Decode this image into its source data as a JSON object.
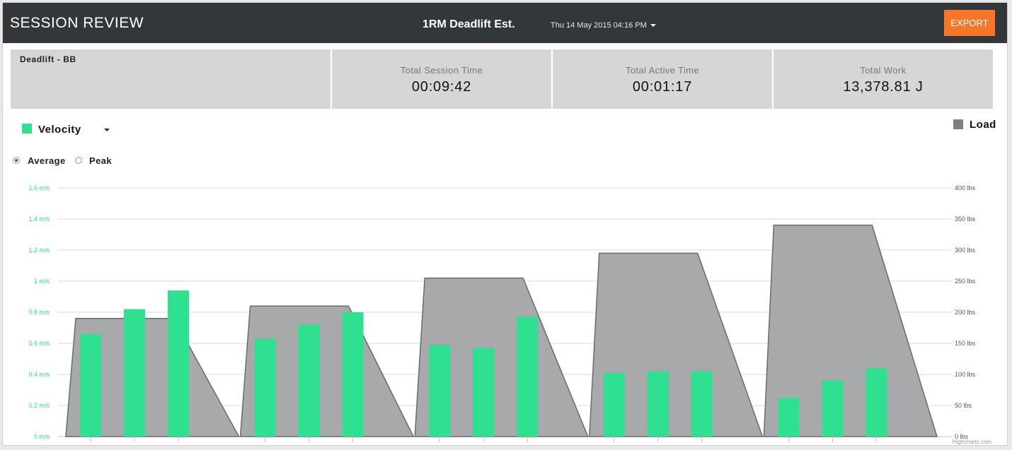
{
  "header": {
    "title": "SESSION REVIEW",
    "subtitle": "1RM Deadlift Est.",
    "date_label": "Thu 14 May 2015 04:16 PM",
    "export_label": "EXPORT"
  },
  "exercise": {
    "name": "Deadlift - BB"
  },
  "stats": [
    {
      "label": "Total Session Time",
      "value": "00:09:42"
    },
    {
      "label": "Total Active Time",
      "value": "00:01:17"
    },
    {
      "label": "Total Work",
      "value": "13,378.81 J"
    }
  ],
  "legend": {
    "velocity_label": "Velocity",
    "load_label": "Load"
  },
  "mode": {
    "average_label": "Average",
    "peak_label": "Peak",
    "selected": "Average"
  },
  "credit": "Highcharts.com",
  "colors": {
    "header_bg": "#333739",
    "export_bg": "#f7772a",
    "velocity": "#2ee08f",
    "load_fill": "#a7a9ab",
    "load_stroke": "#6a6a6a",
    "velocity_axis": "#2ee08f",
    "load_axis": "#555555"
  },
  "chart_data": {
    "type": "bar",
    "velocity_axis": {
      "ticks": [
        {
          "value": 0,
          "label": "0 m/s"
        },
        {
          "value": 0.2,
          "label": "0.2 m/s"
        },
        {
          "value": 0.4,
          "label": "0.4 m/s"
        },
        {
          "value": 0.6,
          "label": "0.6 m/s"
        },
        {
          "value": 0.8,
          "label": "0.8 m/s"
        },
        {
          "value": 1.0,
          "label": "1 m/s"
        },
        {
          "value": 1.2,
          "label": "1.2 m/s"
        },
        {
          "value": 1.4,
          "label": "1.4 m/s"
        },
        {
          "value": 1.6,
          "label": "1.6 m/s"
        }
      ],
      "min": 0,
      "max": 1.6
    },
    "load_axis": {
      "ticks": [
        {
          "value": 0,
          "label": "0 lbs"
        },
        {
          "value": 50,
          "label": "50 lbs"
        },
        {
          "value": 100,
          "label": "100 lbs"
        },
        {
          "value": 150,
          "label": "150 lbs"
        },
        {
          "value": 200,
          "label": "200 lbs"
        },
        {
          "value": 250,
          "label": "250 lbs"
        },
        {
          "value": 300,
          "label": "300 lbs"
        },
        {
          "value": 350,
          "label": "350 lbs"
        },
        {
          "value": 400,
          "label": "400 lbs"
        }
      ],
      "min": 0,
      "max": 400
    },
    "series": [
      {
        "name": "Velocity",
        "type": "bar",
        "values": [
          0.66,
          0.82,
          0.94,
          0.63,
          0.72,
          0.8,
          0.59,
          0.57,
          0.77,
          0.41,
          0.42,
          0.42,
          0.25,
          0.36,
          0.44
        ]
      },
      {
        "name": "Load",
        "type": "area",
        "values": [
          190,
          190,
          190,
          210,
          210,
          210,
          255,
          255,
          255,
          295,
          295,
          295,
          340,
          340,
          340
        ]
      }
    ],
    "sets": 5,
    "reps_per_set": 3
  }
}
